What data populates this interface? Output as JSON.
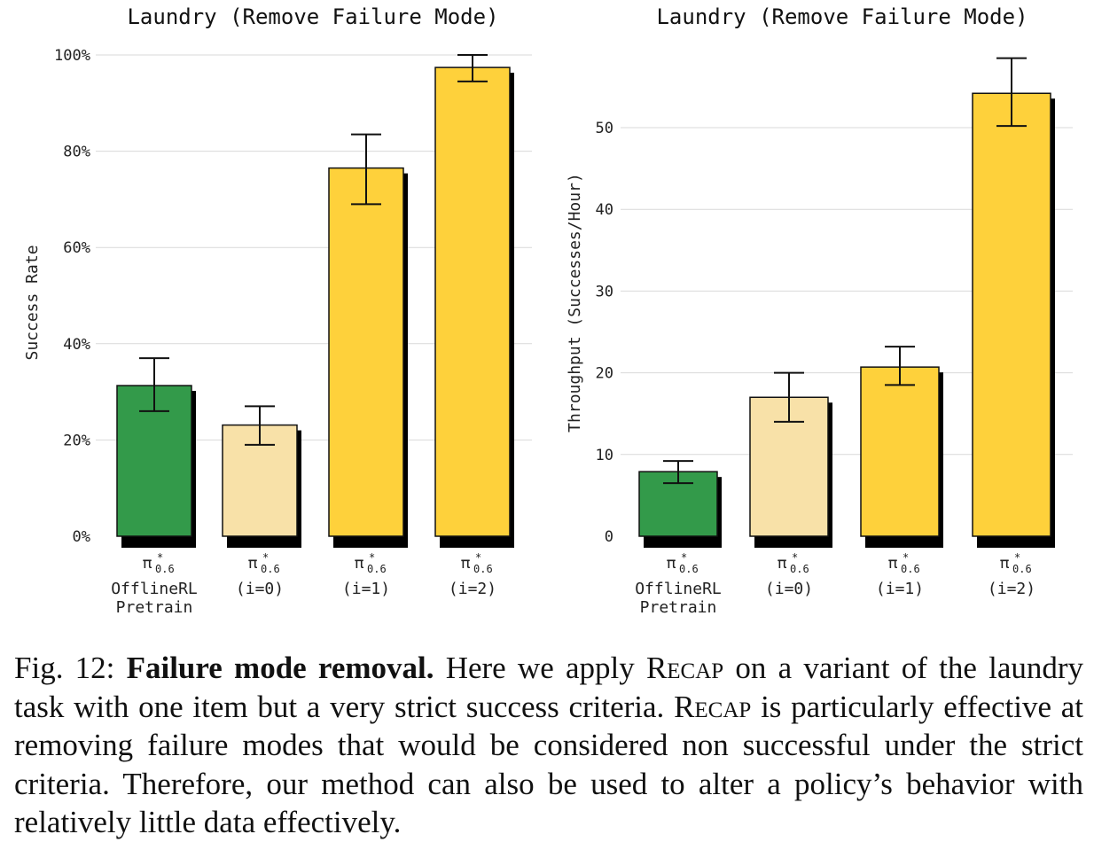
{
  "chart_data": [
    {
      "type": "bar",
      "title": "Laundry (Remove Failure Mode)",
      "ylabel": "Success Rate",
      "ylim": [
        0,
        100
      ],
      "yticks": [
        0,
        20,
        40,
        60,
        80,
        100
      ],
      "ytick_labels": [
        "0%",
        "20%",
        "40%",
        "60%",
        "80%",
        "100%"
      ],
      "grid": true,
      "categories": [
        {
          "symbol": "π",
          "sup": "*",
          "sub": "0.6",
          "lines": [
            "OfflineRL",
            "Pretrain"
          ]
        },
        {
          "symbol": "π",
          "sup": "*",
          "sub": "0.6",
          "lines": [
            "(i=0)"
          ]
        },
        {
          "symbol": "π",
          "sup": "*",
          "sub": "0.6",
          "lines": [
            "(i=1)"
          ]
        },
        {
          "symbol": "π",
          "sup": "*",
          "sub": "0.6",
          "lines": [
            "(i=2)"
          ]
        }
      ],
      "values": [
        31.3,
        23.1,
        76.5,
        97.4
      ],
      "error_low": [
        26.0,
        19.0,
        69.0,
        94.5
      ],
      "error_high": [
        37.0,
        27.0,
        83.5,
        100.0
      ],
      "colors": [
        "#339a4a",
        "#f8e1a8",
        "#fed13b",
        "#fed13b"
      ]
    },
    {
      "type": "bar",
      "title": "Laundry (Remove Failure Mode)",
      "ylabel": "Throughput (Successes/Hour)",
      "ylim": [
        0,
        60
      ],
      "yticks": [
        0,
        10,
        20,
        30,
        40,
        50
      ],
      "ytick_labels": [
        "0",
        "10",
        "20",
        "30",
        "40",
        "50"
      ],
      "grid": true,
      "categories": [
        {
          "symbol": "π",
          "sup": "*",
          "sub": "0.6",
          "lines": [
            "OfflineRL",
            "Pretrain"
          ]
        },
        {
          "symbol": "π",
          "sup": "*",
          "sub": "0.6",
          "lines": [
            "(i=0)"
          ]
        },
        {
          "symbol": "π",
          "sup": "*",
          "sub": "0.6",
          "lines": [
            "(i=1)"
          ]
        },
        {
          "symbol": "π",
          "sup": "*",
          "sub": "0.6",
          "lines": [
            "(i=2)"
          ]
        }
      ],
      "values": [
        7.9,
        17.0,
        20.7,
        54.2
      ],
      "error_low": [
        6.5,
        14.0,
        18.5,
        50.2
      ],
      "error_high": [
        9.2,
        20.0,
        23.2,
        58.5
      ],
      "colors": [
        "#339a4a",
        "#f8e1a8",
        "#fed13b",
        "#fed13b"
      ]
    }
  ],
  "caption": {
    "fig_label": "Fig. 12:",
    "bold_lead": "Failure mode removal.",
    "text_1": "Here we apply",
    "method_1": "Recap",
    "text_2": "on a variant of the laundry task with one item but a very strict success criteria.",
    "method_2": "Recap",
    "text_3": "is particularly effective at removing failure modes that would be considered non successful under the strict criteria. Therefore, our method can also be used to alter a policy’s behavior with relatively little data effectively."
  }
}
